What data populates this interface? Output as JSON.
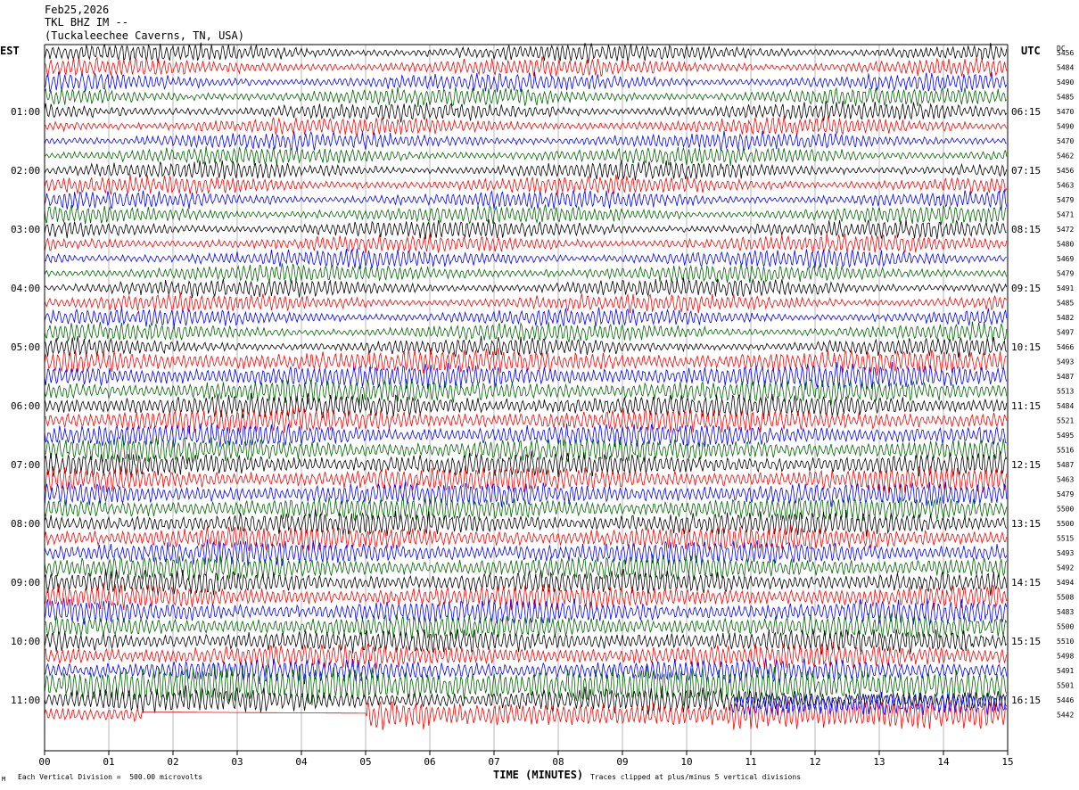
{
  "header": {
    "date": "Feb25,2026",
    "station": "TKL BHZ IM --",
    "location": "(Tuckaleechee Caverns, TN, USA)",
    "left_timezone": "EST",
    "right_timezone": "UTC",
    "dc_label": "DC"
  },
  "footer": {
    "scale_note": "Each Vertical Division =  500.00 microvolts",
    "clip_note": "Traces clipped at plus/minus 5 vertical divisions",
    "logo_text": "M"
  },
  "colors": {
    "trace_cycle": [
      "#000000",
      "#ff0000",
      "#0000ff",
      "#006400"
    ],
    "grid": "#888888",
    "background": "#ffffff"
  },
  "chart_data": {
    "type": "line",
    "subtype": "helicorder",
    "xlabel": "TIME (MINUTES)",
    "xlim": [
      0,
      15
    ],
    "x_ticks": [
      "00",
      "01",
      "02",
      "03",
      "04",
      "05",
      "06",
      "07",
      "08",
      "09",
      "10",
      "11",
      "12",
      "13",
      "14",
      "15"
    ],
    "trace_minutes": 15,
    "left_hour_labels": [
      "01:00",
      "02:00",
      "03:00",
      "04:00",
      "05:00",
      "06:00",
      "07:00",
      "08:00",
      "09:00",
      "10:00",
      "11:00"
    ],
    "right_hour_labels": [
      "06:15",
      "07:15",
      "08:15",
      "09:15",
      "10:15",
      "11:15",
      "12:15",
      "13:15",
      "14:15",
      "15:15",
      "16:15"
    ],
    "dc_offsets": [
      5456,
      5484,
      5490,
      5485,
      5470,
      5490,
      5470,
      5462,
      5456,
      5463,
      5479,
      5471,
      5472,
      5480,
      5469,
      5479,
      5491,
      5485,
      5482,
      5497,
      5466,
      5493,
      5487,
      5513,
      5484,
      5521,
      5495,
      5516,
      5487,
      5463,
      5479,
      5500,
      5500,
      5515,
      5493,
      5492,
      5494,
      5508,
      5483,
      5500,
      5510,
      5498,
      5491,
      5501,
      5446,
      5442
    ],
    "last_trace_note": "Final partial trace flat (data gap) between minute 1.5 and 5.0",
    "gap_minutes": [
      1.5,
      5.0
    ]
  }
}
